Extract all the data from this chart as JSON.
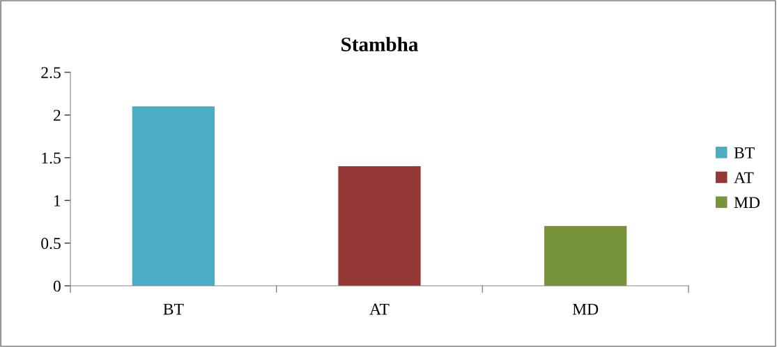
{
  "chart_data": {
    "type": "bar",
    "title": "Stambha",
    "categories": [
      "BT",
      "AT",
      "MD"
    ],
    "series": [
      {
        "name": "BT",
        "color": "#4bacc6",
        "values": [
          2.1,
          null,
          null
        ]
      },
      {
        "name": "AT",
        "color": "#953735",
        "values": [
          null,
          1.4,
          null
        ]
      },
      {
        "name": "MD",
        "color": "#77933c",
        "values": [
          null,
          null,
          0.7
        ]
      }
    ],
    "ylim": [
      0,
      2.5
    ],
    "yticks": [
      0,
      0.5,
      1,
      1.5,
      2,
      2.5
    ],
    "grid": false,
    "legend": "right"
  }
}
